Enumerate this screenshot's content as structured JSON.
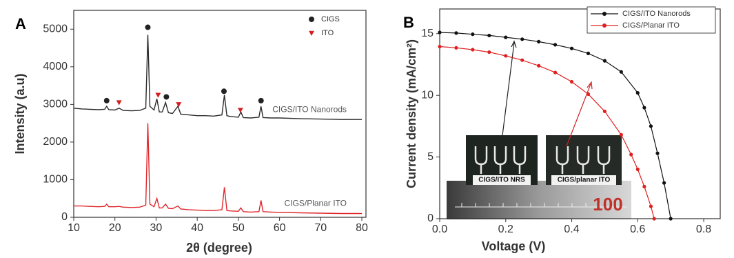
{
  "chart_data": [
    {
      "type": "line",
      "panel_label": "A",
      "x_label": "2θ (degree)",
      "y_label": "Intensity (a.u)",
      "xlim": [
        10,
        81
      ],
      "ylim": [
        0,
        5500
      ],
      "xticks": [
        10,
        20,
        30,
        40,
        50,
        60,
        70,
        80
      ],
      "yticks": [
        0,
        1000,
        2000,
        3000,
        4000,
        5000
      ],
      "series": [
        {
          "name": "CIGS/ITO Nanorods",
          "color": "#2a2a2a",
          "style": "line",
          "series_label": "inline",
          "x": [
            10,
            12,
            14,
            16,
            17.5,
            18,
            18.5,
            20,
            21,
            22,
            24,
            26,
            27.5,
            28,
            28.5,
            29.5,
            30.2,
            30.8,
            31.5,
            32.3,
            33,
            34,
            35.3,
            36,
            38,
            40,
            42,
            44,
            46,
            46.6,
            47.2,
            48,
            50,
            50.6,
            51.2,
            53,
            55,
            55.5,
            56,
            58,
            60,
            65,
            70,
            75,
            80
          ],
          "values": [
            2900,
            2880,
            2870,
            2860,
            2870,
            2950,
            2860,
            2850,
            2900,
            2840,
            2830,
            2840,
            2900,
            4850,
            2950,
            2850,
            3150,
            2800,
            2800,
            3050,
            2780,
            2760,
            2950,
            2740,
            2720,
            2700,
            2700,
            2690,
            2720,
            3250,
            2700,
            2680,
            2660,
            2800,
            2650,
            2640,
            2660,
            2950,
            2650,
            2640,
            2640,
            2620,
            2610,
            2600,
            2600
          ]
        },
        {
          "name": "CIGS/Planar ITO",
          "color": "#e0262b",
          "style": "line",
          "series_label": "inline",
          "x": [
            10,
            12,
            14,
            16,
            17.5,
            18,
            18.5,
            20,
            21,
            22,
            24,
            26,
            27.5,
            28,
            28.5,
            29.5,
            30.2,
            30.8,
            31.5,
            32.3,
            33,
            34,
            35.3,
            36,
            38,
            40,
            42,
            44,
            46,
            46.6,
            47.2,
            48,
            50,
            50.6,
            51.2,
            53,
            55,
            55.5,
            56,
            58,
            60,
            65,
            70,
            75,
            80
          ],
          "values": [
            300,
            300,
            290,
            280,
            290,
            350,
            280,
            280,
            290,
            270,
            260,
            270,
            320,
            2500,
            350,
            280,
            500,
            250,
            250,
            350,
            240,
            230,
            300,
            220,
            200,
            190,
            180,
            180,
            200,
            800,
            180,
            170,
            160,
            250,
            150,
            140,
            150,
            450,
            150,
            140,
            130,
            120,
            110,
            100,
            100
          ]
        },
        {
          "name": "CIGS",
          "color": "#222222",
          "style": "markers",
          "marker": "circle",
          "series_label": "legend",
          "x": [
            18,
            28,
            32.5,
            46.5,
            55.5
          ],
          "values": [
            3100,
            5050,
            3200,
            3350,
            3100
          ]
        },
        {
          "name": "ITO",
          "color": "#d42020",
          "style": "markers",
          "marker": "triangle-down",
          "series_label": "legend",
          "x": [
            21,
            30.5,
            35.5,
            50.5
          ],
          "values": [
            3050,
            3250,
            3000,
            2850
          ]
        }
      ]
    },
    {
      "type": "line",
      "panel_label": "B",
      "x_label": "Voltage (V)",
      "y_label": "Current density (mA/cm²)",
      "xlim": [
        0,
        0.85
      ],
      "ylim": [
        0,
        17
      ],
      "xticks": [
        {
          "value": 0,
          "label": "0.0"
        },
        0.2,
        0.4,
        0.6,
        0.8
      ],
      "yticks": [
        0,
        5,
        10,
        15
      ],
      "series": [
        {
          "name": "CIGS/ITO Nanorods",
          "color": "#111111",
          "style": "line-markers",
          "marker": "circle",
          "series_label": "legend",
          "x": [
            0,
            0.05,
            0.1,
            0.15,
            0.2,
            0.25,
            0.3,
            0.35,
            0.4,
            0.45,
            0.5,
            0.55,
            0.6,
            0.62,
            0.64,
            0.66,
            0.68,
            0.7
          ],
          "values": [
            15.1,
            15.05,
            14.95,
            14.85,
            14.7,
            14.55,
            14.35,
            14.1,
            13.8,
            13.4,
            12.8,
            11.9,
            10.2,
            9.0,
            7.5,
            5.3,
            2.9,
            0
          ]
        },
        {
          "name": "CIGS/Planar ITO",
          "color": "#e02020",
          "style": "line-markers",
          "marker": "circle",
          "series_label": "legend",
          "x": [
            0,
            0.05,
            0.1,
            0.15,
            0.2,
            0.25,
            0.3,
            0.35,
            0.4,
            0.45,
            0.5,
            0.55,
            0.58,
            0.6,
            0.62,
            0.64,
            0.65
          ],
          "values": [
            13.95,
            13.85,
            13.7,
            13.5,
            13.2,
            12.85,
            12.4,
            11.85,
            11.1,
            10.1,
            8.7,
            6.8,
            5.2,
            4.0,
            2.6,
            1.0,
            0
          ]
        }
      ],
      "annotations": [
        "CIGS/ITO NRS",
        "CIGS/planar ITO",
        "100"
      ]
    }
  ]
}
